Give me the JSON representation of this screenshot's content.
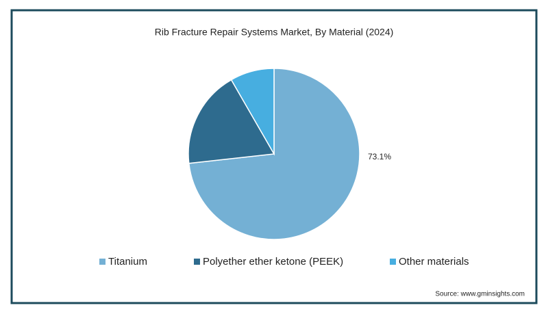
{
  "chart_data": {
    "type": "pie",
    "title": "Rib Fracture Repair Systems Market, By Material (2024)",
    "categories": [
      "Titanium",
      "Polyether ether ketone (PEEK)",
      "Other materials"
    ],
    "values": [
      73.1,
      18.4,
      8.3
    ],
    "value_labels": [
      "73.1%",
      null,
      null
    ],
    "colors": [
      "#74b0d4",
      "#2e6b8e",
      "#47aee0"
    ],
    "source": "Source: www.gminsights.com"
  }
}
